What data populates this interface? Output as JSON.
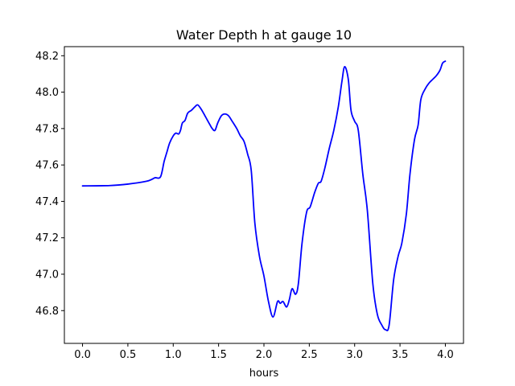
{
  "chart_data": {
    "type": "line",
    "title": "Water Depth h at gauge 10",
    "xlabel": "hours",
    "ylabel": "",
    "xlim": [
      -0.2,
      4.2
    ],
    "ylim": [
      46.62,
      48.25
    ],
    "xticks": [
      0.0,
      0.5,
      1.0,
      1.5,
      2.0,
      2.5,
      3.0,
      3.5,
      4.0
    ],
    "xtick_labels": [
      "0.0",
      "0.5",
      "1.0",
      "1.5",
      "2.0",
      "2.5",
      "3.0",
      "3.5",
      "4.0"
    ],
    "yticks": [
      46.8,
      47.0,
      47.2,
      47.4,
      47.6,
      47.8,
      48.0,
      48.2
    ],
    "ytick_labels": [
      "46.8",
      "47.0",
      "47.2",
      "47.4",
      "47.6",
      "47.8",
      "48.0",
      "48.2"
    ],
    "grid": false,
    "legend": "none",
    "series": [
      {
        "color": "#0000ff",
        "points": [
          [
            0.0,
            47.485
          ],
          [
            0.3,
            47.487
          ],
          [
            0.5,
            47.495
          ],
          [
            0.7,
            47.51
          ],
          [
            0.76,
            47.52
          ],
          [
            0.8,
            47.53
          ],
          [
            0.86,
            47.535
          ],
          [
            0.9,
            47.62
          ],
          [
            0.93,
            47.67
          ],
          [
            0.96,
            47.72
          ],
          [
            1.0,
            47.76
          ],
          [
            1.03,
            47.775
          ],
          [
            1.06,
            47.77
          ],
          [
            1.08,
            47.79
          ],
          [
            1.1,
            47.83
          ],
          [
            1.13,
            47.845
          ],
          [
            1.16,
            47.885
          ],
          [
            1.2,
            47.9
          ],
          [
            1.24,
            47.92
          ],
          [
            1.27,
            47.93
          ],
          [
            1.31,
            47.905
          ],
          [
            1.35,
            47.87
          ],
          [
            1.4,
            47.825
          ],
          [
            1.43,
            47.8
          ],
          [
            1.46,
            47.79
          ],
          [
            1.49,
            47.83
          ],
          [
            1.53,
            47.87
          ],
          [
            1.57,
            47.88
          ],
          [
            1.61,
            47.87
          ],
          [
            1.65,
            47.84
          ],
          [
            1.7,
            47.8
          ],
          [
            1.74,
            47.76
          ],
          [
            1.78,
            47.73
          ],
          [
            1.82,
            47.66
          ],
          [
            1.86,
            47.57
          ],
          [
            1.9,
            47.28
          ],
          [
            1.95,
            47.1
          ],
          [
            2.0,
            46.99
          ],
          [
            2.05,
            46.85
          ],
          [
            2.1,
            46.765
          ],
          [
            2.15,
            46.85
          ],
          [
            2.18,
            46.84
          ],
          [
            2.21,
            46.85
          ],
          [
            2.25,
            46.82
          ],
          [
            2.28,
            46.86
          ],
          [
            2.31,
            46.92
          ],
          [
            2.35,
            46.89
          ],
          [
            2.38,
            46.95
          ],
          [
            2.42,
            47.17
          ],
          [
            2.47,
            47.34
          ],
          [
            2.51,
            47.37
          ],
          [
            2.56,
            47.45
          ],
          [
            2.6,
            47.5
          ],
          [
            2.63,
            47.51
          ],
          [
            2.67,
            47.58
          ],
          [
            2.72,
            47.69
          ],
          [
            2.77,
            47.79
          ],
          [
            2.82,
            47.92
          ],
          [
            2.86,
            48.06
          ],
          [
            2.89,
            48.14
          ],
          [
            2.93,
            48.07
          ],
          [
            2.96,
            47.9
          ],
          [
            3.0,
            47.84
          ],
          [
            3.04,
            47.79
          ],
          [
            3.09,
            47.55
          ],
          [
            3.14,
            47.35
          ],
          [
            3.2,
            46.95
          ],
          [
            3.25,
            46.78
          ],
          [
            3.3,
            46.72
          ],
          [
            3.34,
            46.695
          ],
          [
            3.38,
            46.72
          ],
          [
            3.43,
            46.97
          ],
          [
            3.48,
            47.1
          ],
          [
            3.52,
            47.17
          ],
          [
            3.57,
            47.33
          ],
          [
            3.61,
            47.55
          ],
          [
            3.66,
            47.74
          ],
          [
            3.7,
            47.82
          ],
          [
            3.73,
            47.96
          ],
          [
            3.78,
            48.02
          ],
          [
            3.82,
            48.05
          ],
          [
            3.86,
            48.07
          ],
          [
            3.9,
            48.09
          ],
          [
            3.94,
            48.12
          ],
          [
            3.97,
            48.16
          ],
          [
            4.0,
            48.17
          ]
        ]
      }
    ]
  }
}
